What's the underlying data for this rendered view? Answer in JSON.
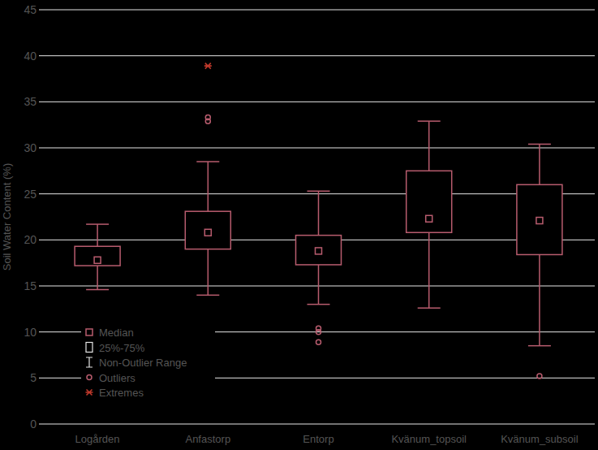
{
  "chart_data": {
    "type": "box",
    "y_label": "Soil Water Content (%)",
    "categories": [
      "Logården",
      "Anfastorp",
      "Entorp",
      "Kvänum_topsoil",
      "Kvänum_subsoil"
    ],
    "boxes": [
      {
        "whisker_low": 14.6,
        "q1": 17.2,
        "median": 17.8,
        "q3": 19.3,
        "whisker_high": 21.7,
        "outliers": [],
        "extremes": []
      },
      {
        "whisker_low": 14.0,
        "q1": 19.0,
        "median": 20.8,
        "q3": 23.1,
        "whisker_high": 28.5,
        "outliers": [
          33.3,
          32.9
        ],
        "extremes": [
          38.9
        ]
      },
      {
        "whisker_low": 13.0,
        "q1": 17.3,
        "median": 18.8,
        "q3": 20.5,
        "whisker_high": 25.3,
        "outliers": [
          10.4,
          10.0,
          8.9
        ],
        "extremes": []
      },
      {
        "whisker_low": 12.6,
        "q1": 20.8,
        "median": 22.3,
        "q3": 27.5,
        "whisker_high": 32.9,
        "outliers": [],
        "extremes": []
      },
      {
        "whisker_low": 8.5,
        "q1": 18.4,
        "median": 22.1,
        "q3": 26.0,
        "whisker_high": 30.4,
        "outliers": [
          5.2
        ],
        "extremes": []
      }
    ],
    "legend_items": [
      "Median",
      "25%-75%",
      "Non-Outlier Range",
      "Outliers",
      "Extremes"
    ],
    "legend": "bottom-left",
    "color": "#b85c6e",
    "ylim": [
      0,
      45
    ],
    "yticks": [
      0,
      5,
      10,
      15,
      20,
      25,
      30,
      35,
      40,
      45
    ],
    "grid": true
  }
}
